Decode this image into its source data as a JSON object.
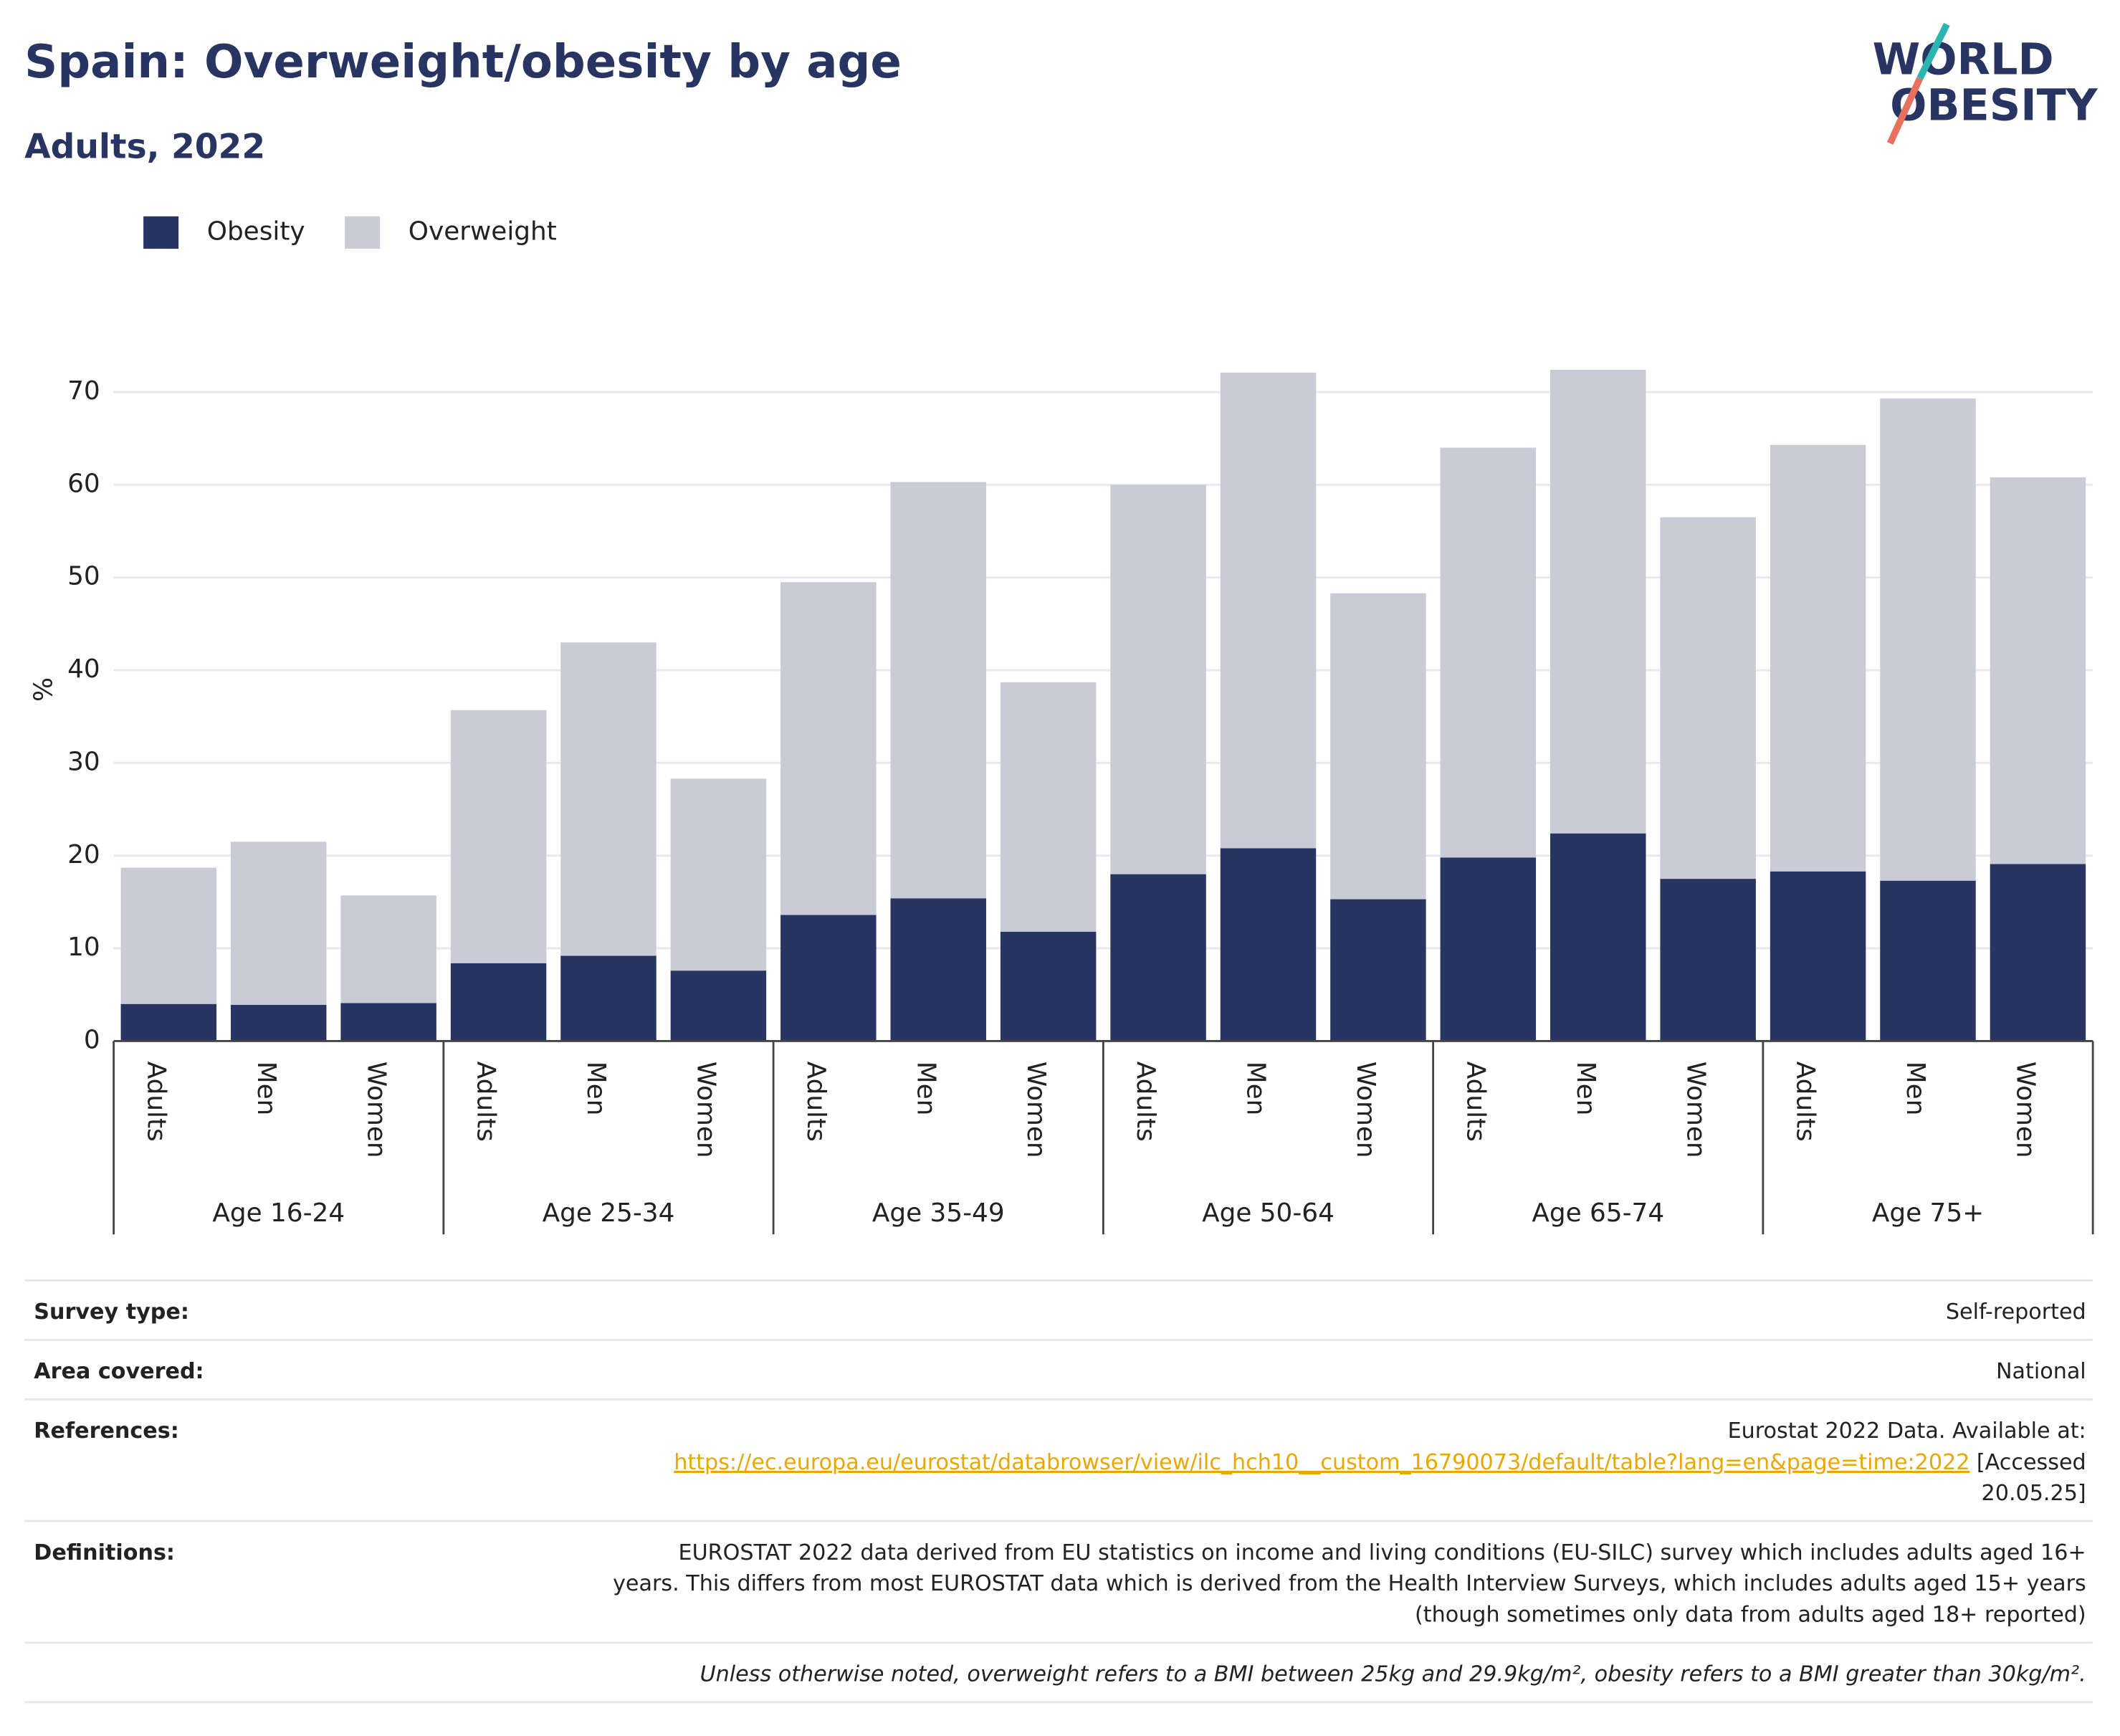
{
  "chart_data": {
    "type": "stacked_bar",
    "title": "Spain: Overweight/obesity by age",
    "subtitle": "Adults, 2022",
    "logo": [
      "WORLD",
      "OBESITY"
    ],
    "y_label": "%",
    "categories": [
      "Adults",
      "Men",
      "Women",
      "Adults",
      "Men",
      "Women",
      "Adults",
      "Men",
      "Women",
      "Adults",
      "Men",
      "Women",
      "Adults",
      "Men",
      "Women",
      "Adults",
      "Men",
      "Women"
    ],
    "groups": [
      "Age 16-24",
      "Age 25-34",
      "Age 35-49",
      "Age 50-64",
      "Age 65-74",
      "Age 75+"
    ],
    "series": [
      {
        "name": "Obesity",
        "color": "#283562",
        "values": [
          4.0,
          3.9,
          4.1,
          8.4,
          9.2,
          7.6,
          13.6,
          15.4,
          11.8,
          18.0,
          20.8,
          15.3,
          19.8,
          22.4,
          17.5,
          18.3,
          17.3,
          19.1
        ]
      },
      {
        "name": "Overweight",
        "color": "#c9cbd7",
        "values": [
          14.7,
          17.6,
          11.6,
          27.3,
          33.8,
          20.7,
          35.9,
          44.9,
          26.9,
          42.0,
          51.3,
          33.0,
          44.2,
          50.0,
          39.0,
          46.0,
          52.0,
          41.7
        ]
      }
    ],
    "ylim": [
      0,
      75
    ],
    "yticks": [
      0,
      10,
      20,
      30,
      40,
      50,
      60,
      70
    ],
    "grid": true,
    "legend": "top-left"
  },
  "table": {
    "rows": [
      {
        "label": "Survey type:",
        "lines": [
          "Self-reported"
        ]
      },
      {
        "label": "Area covered:",
        "lines": [
          "National"
        ]
      },
      {
        "label": "References:",
        "lines": [
          "Eurostat 2022 Data. Available at:"
        ],
        "url": "https://ec.europa.eu/eurostat/databrowser/view/ilc_hch10__custom_16790073/default/table?lang=en&page=time:2022",
        "after_url": "[Accessed",
        "last": "20.05.25]"
      },
      {
        "label": "Definitions:",
        "lines": [
          "EUROSTAT 2022 data derived from EU statistics on income and living conditions (EU-SILC) survey which includes adults aged 16+",
          "years. This differs from most EUROSTAT data which is derived from the Health Interview Surveys, which includes adults aged 15+ years",
          "(though sometimes only data from adults aged 18+ reported)"
        ]
      }
    ],
    "note": "Unless otherwise noted, overweight refers to a BMI between 25kg and 29.9kg/m², obesity refers to a BMI greater than 30kg/m²."
  }
}
